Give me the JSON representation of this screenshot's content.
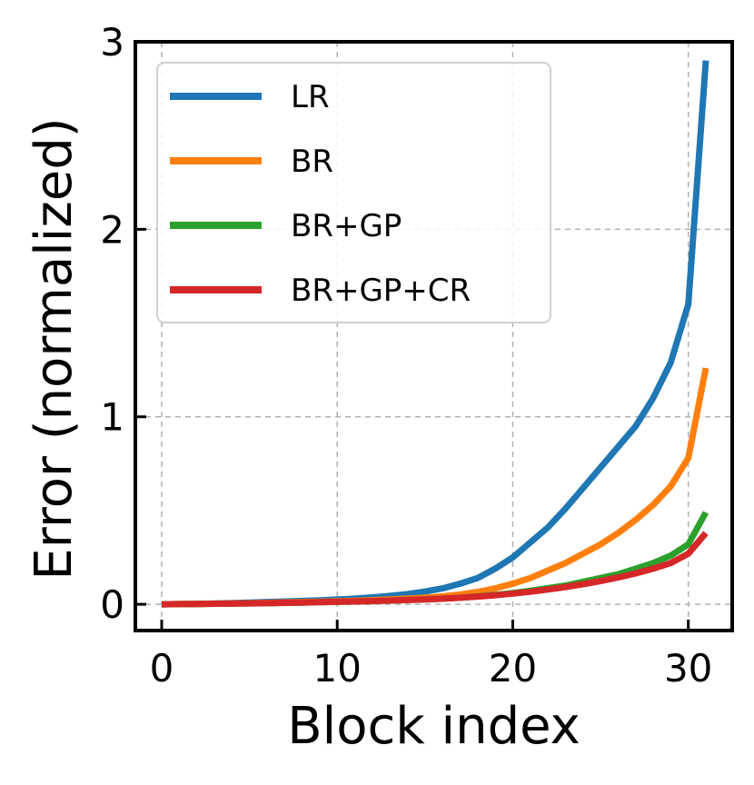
{
  "chart_data": {
    "type": "line",
    "xlabel": "Block index",
    "ylabel": "Error (normalized)",
    "xlim": [
      -1.5,
      32.5
    ],
    "ylim": [
      -0.14,
      3.0
    ],
    "xticks": [
      0,
      10,
      20,
      30
    ],
    "xtick_labels": [
      "0",
      "10",
      "20",
      "30"
    ],
    "yticks": [
      0,
      1,
      2,
      3
    ],
    "ytick_labels": [
      "0",
      "1",
      "2",
      "3"
    ],
    "grid": true,
    "legend_position": "upper-left",
    "x": [
      0,
      1,
      2,
      3,
      4,
      5,
      6,
      7,
      8,
      9,
      10,
      11,
      12,
      13,
      14,
      15,
      16,
      17,
      18,
      19,
      20,
      21,
      22,
      23,
      24,
      25,
      26,
      27,
      28,
      29,
      30,
      31
    ],
    "series": [
      {
        "name": "LR",
        "color": "#1f77b4",
        "values": [
          0,
          0.001,
          0.002,
          0.004,
          0.006,
          0.009,
          0.012,
          0.015,
          0.018,
          0.021,
          0.025,
          0.03,
          0.037,
          0.045,
          0.055,
          0.068,
          0.085,
          0.11,
          0.14,
          0.19,
          0.25,
          0.33,
          0.41,
          0.51,
          0.62,
          0.73,
          0.84,
          0.95,
          1.1,
          1.29,
          1.6,
          2.9
        ]
      },
      {
        "name": "BR",
        "color": "#ff7f0e",
        "values": [
          0,
          0.001,
          0.002,
          0.003,
          0.004,
          0.006,
          0.008,
          0.01,
          0.012,
          0.014,
          0.016,
          0.019,
          0.022,
          0.026,
          0.03,
          0.035,
          0.042,
          0.052,
          0.066,
          0.085,
          0.11,
          0.14,
          0.18,
          0.22,
          0.27,
          0.32,
          0.38,
          0.45,
          0.53,
          0.63,
          0.78,
          1.26
        ]
      },
      {
        "name": "BR+GP",
        "color": "#2ca02c",
        "values": [
          0,
          0.001,
          0.002,
          0.003,
          0.004,
          0.005,
          0.006,
          0.008,
          0.009,
          0.011,
          0.013,
          0.015,
          0.017,
          0.02,
          0.023,
          0.026,
          0.03,
          0.035,
          0.042,
          0.05,
          0.06,
          0.072,
          0.086,
          0.1,
          0.12,
          0.14,
          0.16,
          0.19,
          0.22,
          0.26,
          0.32,
          0.49
        ]
      },
      {
        "name": "BR+GP+CR",
        "color": "#d62728",
        "values": [
          0,
          0.001,
          0.002,
          0.003,
          0.004,
          0.005,
          0.006,
          0.008,
          0.009,
          0.011,
          0.013,
          0.015,
          0.017,
          0.02,
          0.023,
          0.026,
          0.03,
          0.035,
          0.041,
          0.048,
          0.057,
          0.067,
          0.079,
          0.092,
          0.107,
          0.124,
          0.143,
          0.165,
          0.19,
          0.22,
          0.27,
          0.38
        ]
      }
    ]
  }
}
